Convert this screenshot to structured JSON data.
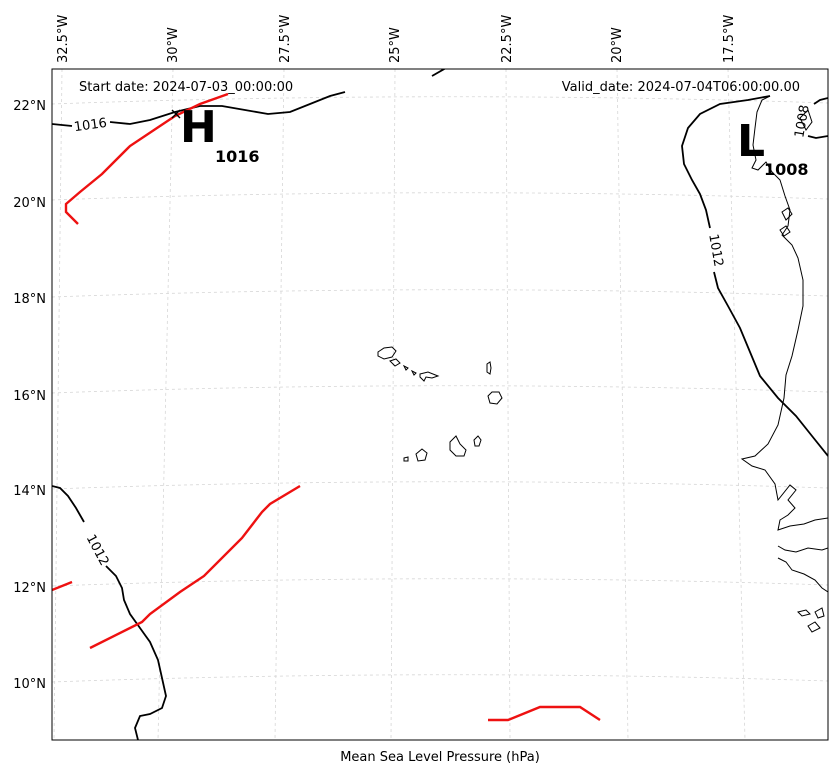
{
  "header": {
    "start_date": "Start date: 2024-07-03_00:00:00",
    "valid_date": "Valid_date: 2024-07-04T06:00:00.00"
  },
  "axes": {
    "xlabel": "Mean Sea Level Pressure (hPa)",
    "lon_ticks": [
      "32.5°W",
      "30°W",
      "27.5°W",
      "25°W",
      "22.5°W",
      "20°W",
      "17.5°W"
    ],
    "lat_ticks": [
      "22°N",
      "20°N",
      "18°N",
      "16°N",
      "14°N",
      "12°N",
      "10°N"
    ],
    "gridlines": true
  },
  "pressure_centers": {
    "high": {
      "letter": "H",
      "value": "1016"
    },
    "low": {
      "letter": "L",
      "value": "1008"
    }
  },
  "isobar_labels": {
    "north_1016": "1016",
    "east_1012": "1012",
    "southwest_1012": "1012",
    "east_1008": "1008"
  },
  "colors": {
    "isobar": "#000000",
    "front": "#ee1111",
    "coastline": "#000000",
    "grid": "#cccccc"
  }
}
